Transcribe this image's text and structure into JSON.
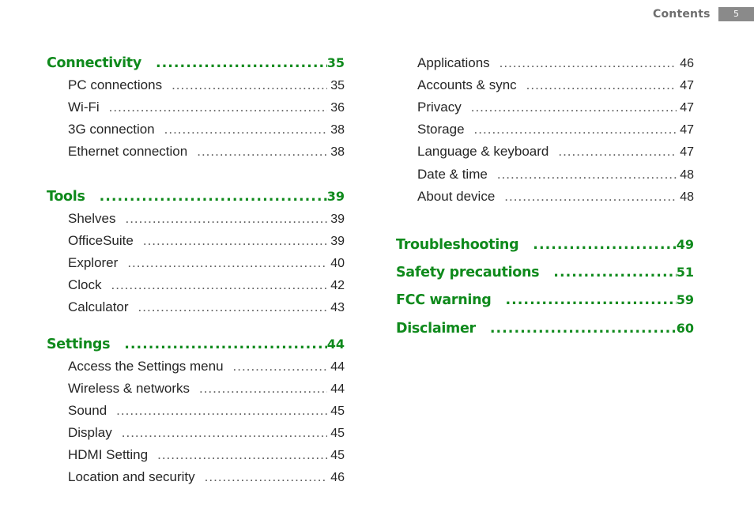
{
  "header": {
    "section_label": "Contents",
    "page_number": "5"
  },
  "left_column": [
    {
      "type": "section",
      "label": "Connectivity",
      "page": "35"
    },
    {
      "type": "item",
      "label": "PC connections",
      "page": "35"
    },
    {
      "type": "item",
      "label": "Wi-Fi",
      "page": "36"
    },
    {
      "type": "item",
      "label": "3G connection",
      "page": "38"
    },
    {
      "type": "item",
      "label": "Ethernet connection",
      "page": "38"
    },
    {
      "type": "section",
      "label": "Tools",
      "page": "39"
    },
    {
      "type": "item",
      "label": "Shelves",
      "page": "39"
    },
    {
      "type": "item",
      "label": "OfficeSuite",
      "page": "39"
    },
    {
      "type": "item",
      "label": "Explorer",
      "page": "40"
    },
    {
      "type": "item",
      "label": "Clock",
      "page": "42"
    },
    {
      "type": "item",
      "label": "Calculator",
      "page": "43"
    },
    {
      "type": "section",
      "label": "Settings",
      "page": "44"
    },
    {
      "type": "item",
      "label": "Access the Settings menu",
      "page": "44"
    },
    {
      "type": "item",
      "label": "Wireless & networks",
      "page": "44"
    },
    {
      "type": "item",
      "label": "Sound",
      "page": "45"
    },
    {
      "type": "item",
      "label": "Display",
      "page": "45"
    },
    {
      "type": "item",
      "label": "HDMI Setting",
      "page": "45"
    },
    {
      "type": "item",
      "label": "Location and security",
      "page": "46"
    }
  ],
  "right_column": [
    {
      "type": "item",
      "label": "Applications",
      "page": "46"
    },
    {
      "type": "item",
      "label": "Accounts & sync",
      "page": "47"
    },
    {
      "type": "item",
      "label": "Privacy",
      "page": "47"
    },
    {
      "type": "item",
      "label": "Storage",
      "page": "47"
    },
    {
      "type": "item",
      "label": "Language & keyboard",
      "page": "47"
    },
    {
      "type": "item",
      "label": "Date & time",
      "page": "48"
    },
    {
      "type": "item",
      "label": "About device",
      "page": "48"
    },
    {
      "type": "section",
      "label": "Troubleshooting",
      "page": "49"
    },
    {
      "type": "section",
      "label": "Safety precautions",
      "page": "51"
    },
    {
      "type": "section",
      "label": "FCC warning",
      "page": "59"
    },
    {
      "type": "section",
      "label": "Disclaimer",
      "page": "60"
    }
  ]
}
